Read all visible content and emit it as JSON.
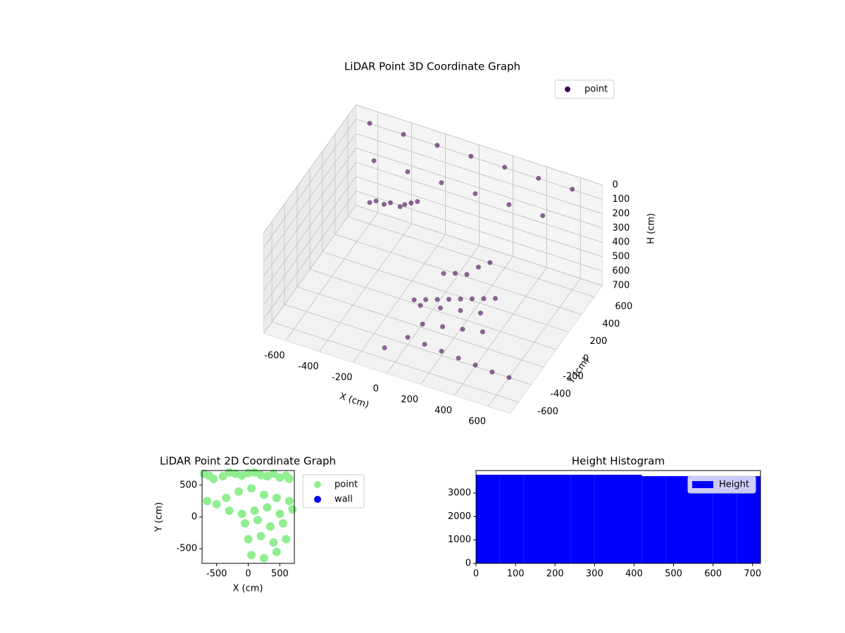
{
  "chart_data": [
    {
      "type": "scatter3d",
      "title": "LiDAR Point 3D Coordinate Graph",
      "xlabel": "X (cm)",
      "ylabel": "Y (cm)",
      "zlabel": "H (cm)",
      "xlim": [
        -730,
        730
      ],
      "ylim": [
        -730,
        730
      ],
      "zlim": [
        700,
        0
      ],
      "xticks": [
        -600,
        -400,
        -200,
        0,
        200,
        400,
        600
      ],
      "yticks": [
        -600,
        -400,
        -200,
        0,
        200,
        400,
        600
      ],
      "zticks": [
        0,
        100,
        200,
        300,
        400,
        500,
        600,
        700
      ],
      "grid": true,
      "legend": "upper right",
      "series": [
        {
          "name": "point",
          "color": "#440154",
          "x": [
            -600,
            -400,
            -200,
            0,
            200,
            400,
            600,
            -500,
            -300,
            -100,
            100,
            300,
            500,
            -450,
            -420,
            -380,
            -350,
            -300,
            -280,
            -250,
            -220,
            100,
            150,
            200,
            250,
            300,
            0,
            50,
            100,
            150,
            200,
            250,
            300,
            350,
            0,
            100,
            200,
            300,
            50,
            150,
            250,
            350,
            0,
            100,
            200,
            300,
            400,
            500,
            600,
            -100
          ],
          "y": [
            600,
            600,
            600,
            600,
            600,
            600,
            600,
            400,
            400,
            400,
            400,
            400,
            400,
            200,
            220,
            240,
            260,
            280,
            300,
            320,
            340,
            -100,
            -50,
            0,
            50,
            100,
            -300,
            -250,
            -200,
            -150,
            -100,
            -50,
            0,
            50,
            -200,
            -150,
            -100,
            -50,
            -300,
            -250,
            -200,
            -150,
            -400,
            -400,
            -400,
            -400,
            -400,
            -400,
            -400,
            -500
          ],
          "z": [
            0,
            0,
            0,
            0,
            0,
            0,
            0,
            100,
            100,
            100,
            100,
            100,
            100,
            250,
            240,
            260,
            250,
            270,
            260,
            250,
            240,
            350,
            360,
            380,
            340,
            320,
            450,
            460,
            470,
            480,
            490,
            500,
            510,
            520,
            550,
            560,
            570,
            580,
            600,
            610,
            620,
            630,
            650,
            660,
            670,
            680,
            690,
            700,
            700,
            700
          ]
        }
      ]
    },
    {
      "type": "scatter",
      "title": "LiDAR Point 2D Coordinate Graph",
      "xlabel": "X (cm)",
      "ylabel": "Y (cm)",
      "xlim": [
        -730,
        730
      ],
      "ylim": [
        -730,
        730
      ],
      "xticks": [
        -500,
        0,
        500
      ],
      "yticks": [
        -500,
        0,
        500
      ],
      "legend": "outside right",
      "series": [
        {
          "name": "point",
          "color": "#90ee90",
          "x": [
            -700,
            -620,
            -550,
            -400,
            -300,
            -200,
            -100,
            0,
            100,
            200,
            300,
            400,
            500,
            600,
            650,
            -650,
            -500,
            -350,
            -150,
            50,
            250,
            450,
            650,
            -300,
            -100,
            100,
            300,
            500,
            700,
            -50,
            150,
            350,
            550,
            0,
            200,
            400,
            600,
            50,
            250,
            450
          ],
          "y": [
            680,
            650,
            600,
            640,
            700,
            680,
            650,
            690,
            700,
            660,
            640,
            680,
            620,
            650,
            600,
            250,
            200,
            300,
            400,
            450,
            350,
            300,
            250,
            100,
            50,
            100,
            150,
            50,
            120,
            -100,
            -50,
            -150,
            -100,
            -350,
            -300,
            -400,
            -350,
            -600,
            -650,
            -550
          ]
        },
        {
          "name": "wall",
          "color": "#0000ff",
          "x": [],
          "y": []
        }
      ]
    },
    {
      "type": "histogram",
      "title": "Height Histogram",
      "xlim": [
        0,
        720
      ],
      "ylim": [
        0,
        3960
      ],
      "xticks": [
        0,
        100,
        200,
        300,
        400,
        500,
        600,
        700
      ],
      "yticks": [
        0,
        1000,
        2000,
        3000
      ],
      "legend": "upper right",
      "series": [
        {
          "name": "Height",
          "color": "#0000ff",
          "bins": [
            0,
            60,
            120,
            180,
            240,
            300,
            360,
            420,
            480,
            540,
            600,
            660,
            720
          ],
          "values": [
            3780,
            3780,
            3780,
            3780,
            3780,
            3780,
            3780,
            3720,
            3720,
            3720,
            3720,
            3720
          ]
        }
      ]
    }
  ]
}
